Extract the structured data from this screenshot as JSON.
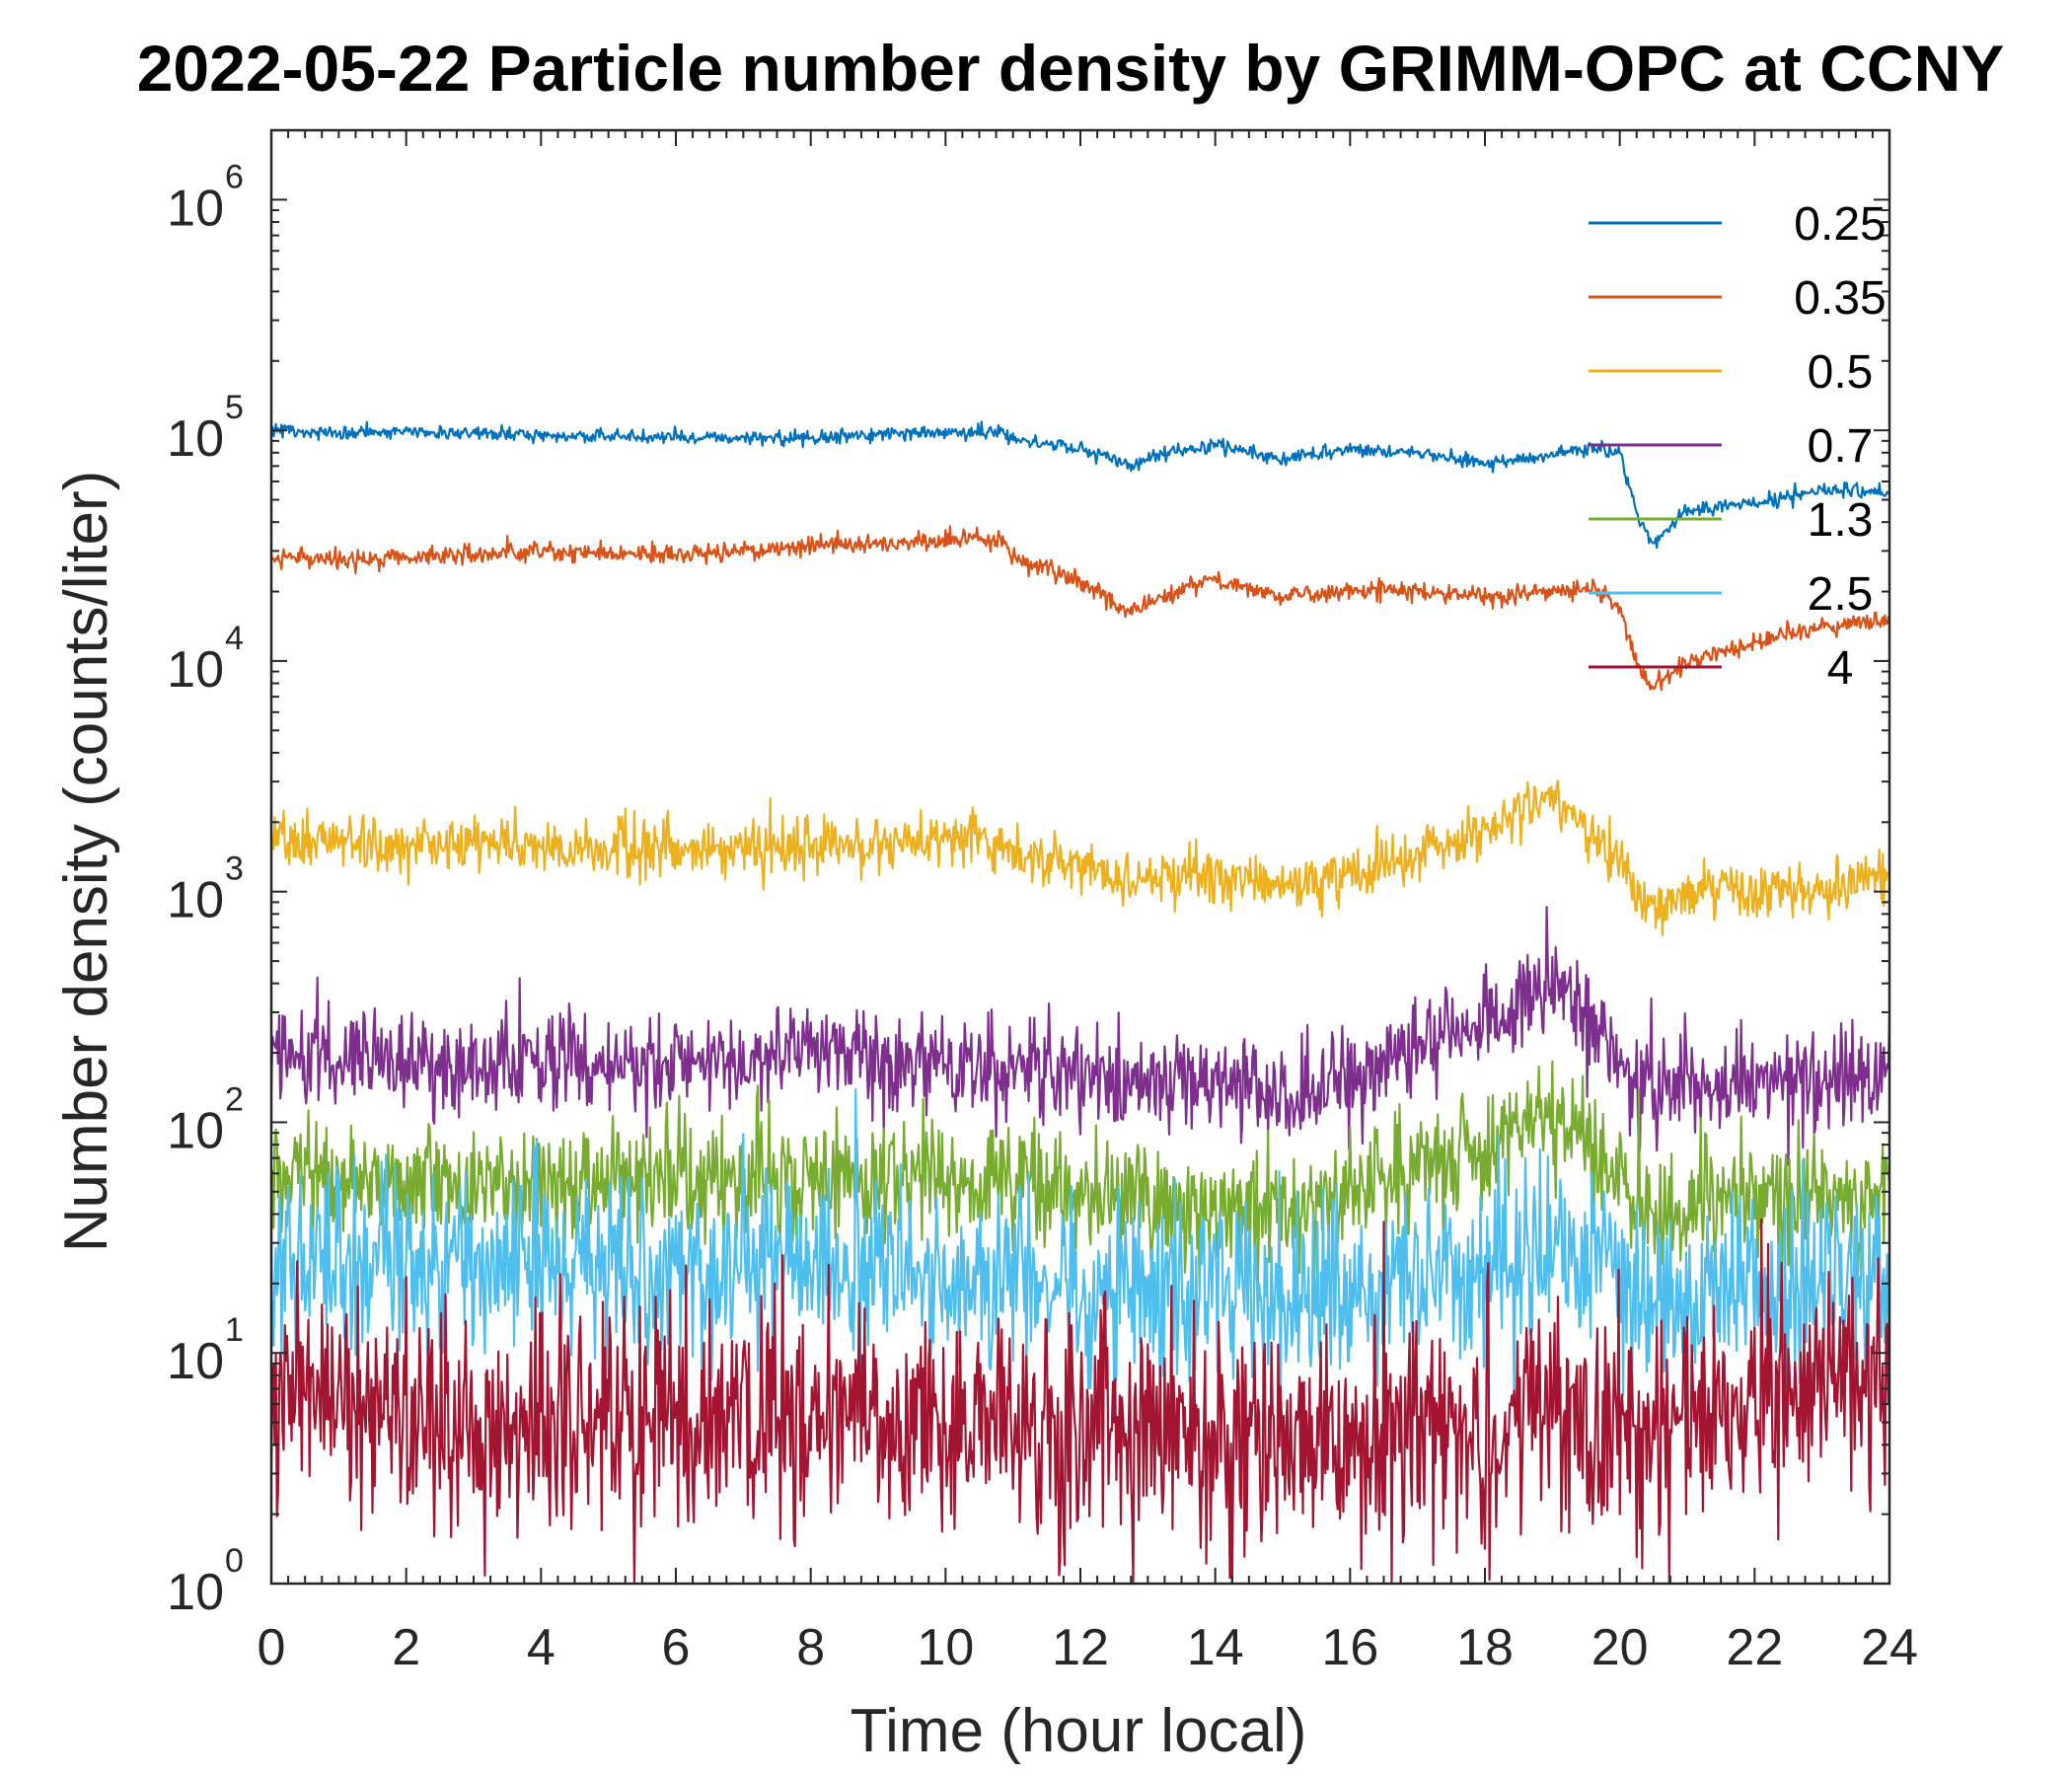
{
  "chart_data": {
    "type": "line",
    "title": "2022-05-22 Particle number density by GRIMM-OPC at CCNY",
    "xlabel": "Time (hour local)",
    "ylabel": "Number density (counts/liter)",
    "xlim": [
      0,
      24
    ],
    "ylim": [
      1,
      2000000
    ],
    "yscale": "log",
    "legend_position": "top-right",
    "x_ticks": [
      0,
      2,
      4,
      6,
      8,
      10,
      12,
      14,
      16,
      18,
      20,
      22,
      24
    ],
    "x_tick_labels": [
      "0",
      "2",
      "4",
      "6",
      "8",
      "10",
      "12",
      "14",
      "16",
      "18",
      "20",
      "22",
      "24"
    ],
    "y_ticks": [
      1,
      10,
      100,
      1000,
      10000,
      100000,
      1000000
    ],
    "y_tick_base": "10",
    "y_tick_exponents": [
      "0",
      "1",
      "2",
      "3",
      "4",
      "5",
      "6"
    ],
    "x": [
      0,
      1,
      2,
      3,
      4,
      5,
      6,
      7,
      8,
      9,
      10,
      10.8,
      11,
      12,
      12.8,
      13,
      14,
      15,
      16,
      17,
      18,
      19,
      19.6,
      20,
      20.3,
      20.5,
      21,
      22,
      23,
      24
    ],
    "series": [
      {
        "name": "0.25",
        "color": "#0072BD",
        "noise": 0.015,
        "values": [
          100000,
          97000,
          98000,
          97000,
          95000,
          94000,
          93000,
          92000,
          93000,
          96000,
          98000,
          98000,
          92000,
          83000,
          70000,
          77000,
          86000,
          75000,
          82000,
          80000,
          72000,
          78000,
          85000,
          80000,
          40000,
          32000,
          45000,
          48000,
          55000,
          54000
        ]
      },
      {
        "name": "0.35",
        "color": "#D95319",
        "noise": 0.02,
        "values": [
          28000,
          28000,
          28000,
          29000,
          30000,
          29000,
          29000,
          30000,
          32000,
          32000,
          34000,
          34000,
          28000,
          22000,
          16000,
          18000,
          23000,
          19000,
          20000,
          20000,
          19000,
          20000,
          21000,
          17000,
          9000,
          7500,
          10000,
          12000,
          14000,
          15000
        ]
      },
      {
        "name": "0.5",
        "color": "#EDB120",
        "noise": 0.06,
        "values": [
          1700,
          1650,
          1600,
          1600,
          1550,
          1500,
          1500,
          1550,
          1600,
          1600,
          1650,
          1650,
          1500,
          1300,
          1050,
          1100,
          1200,
          1050,
          1200,
          1500,
          1800,
          2600,
          1800,
          1400,
          900,
          850,
          1000,
          1000,
          1050,
          1150
        ]
      },
      {
        "name": "0.7",
        "color": "#7E2F8E",
        "noise": 0.11,
        "values": [
          195,
          190,
          185,
          180,
          180,
          175,
          180,
          190,
          200,
          180,
          170,
          175,
          165,
          160,
          150,
          150,
          160,
          130,
          165,
          220,
          270,
          420,
          280,
          170,
          140,
          140,
          150,
          150,
          150,
          160
        ]
      },
      {
        "name": "1.3",
        "color": "#77AC30",
        "noise": 0.13,
        "values": [
          60,
          58,
          56,
          55,
          55,
          54,
          56,
          57,
          58,
          55,
          52,
          53,
          50,
          48,
          46,
          44,
          47,
          40,
          50,
          65,
          75,
          110,
          80,
          55,
          45,
          44,
          45,
          45,
          46,
          48
        ]
      },
      {
        "name": "2.5",
        "color": "#4DBEEE",
        "noise": 0.2,
        "values": [
          25,
          25,
          24,
          24,
          23,
          23,
          24,
          24,
          25,
          23,
          22,
          22,
          21,
          20,
          19,
          18,
          19,
          17,
          19,
          22,
          24,
          28,
          24,
          20,
          18,
          17,
          18,
          19,
          20,
          22
        ]
      },
      {
        "name": "4",
        "color": "#A2142F",
        "noise": 0.25,
        "values": [
          6,
          6,
          5.5,
          5,
          5,
          5,
          5,
          5,
          5,
          5,
          5,
          5,
          4.5,
          4.5,
          4.5,
          4.5,
          4.5,
          4.5,
          4.5,
          5,
          5,
          5.5,
          5,
          5,
          4.5,
          4.5,
          5,
          6,
          7,
          8
        ]
      }
    ]
  }
}
